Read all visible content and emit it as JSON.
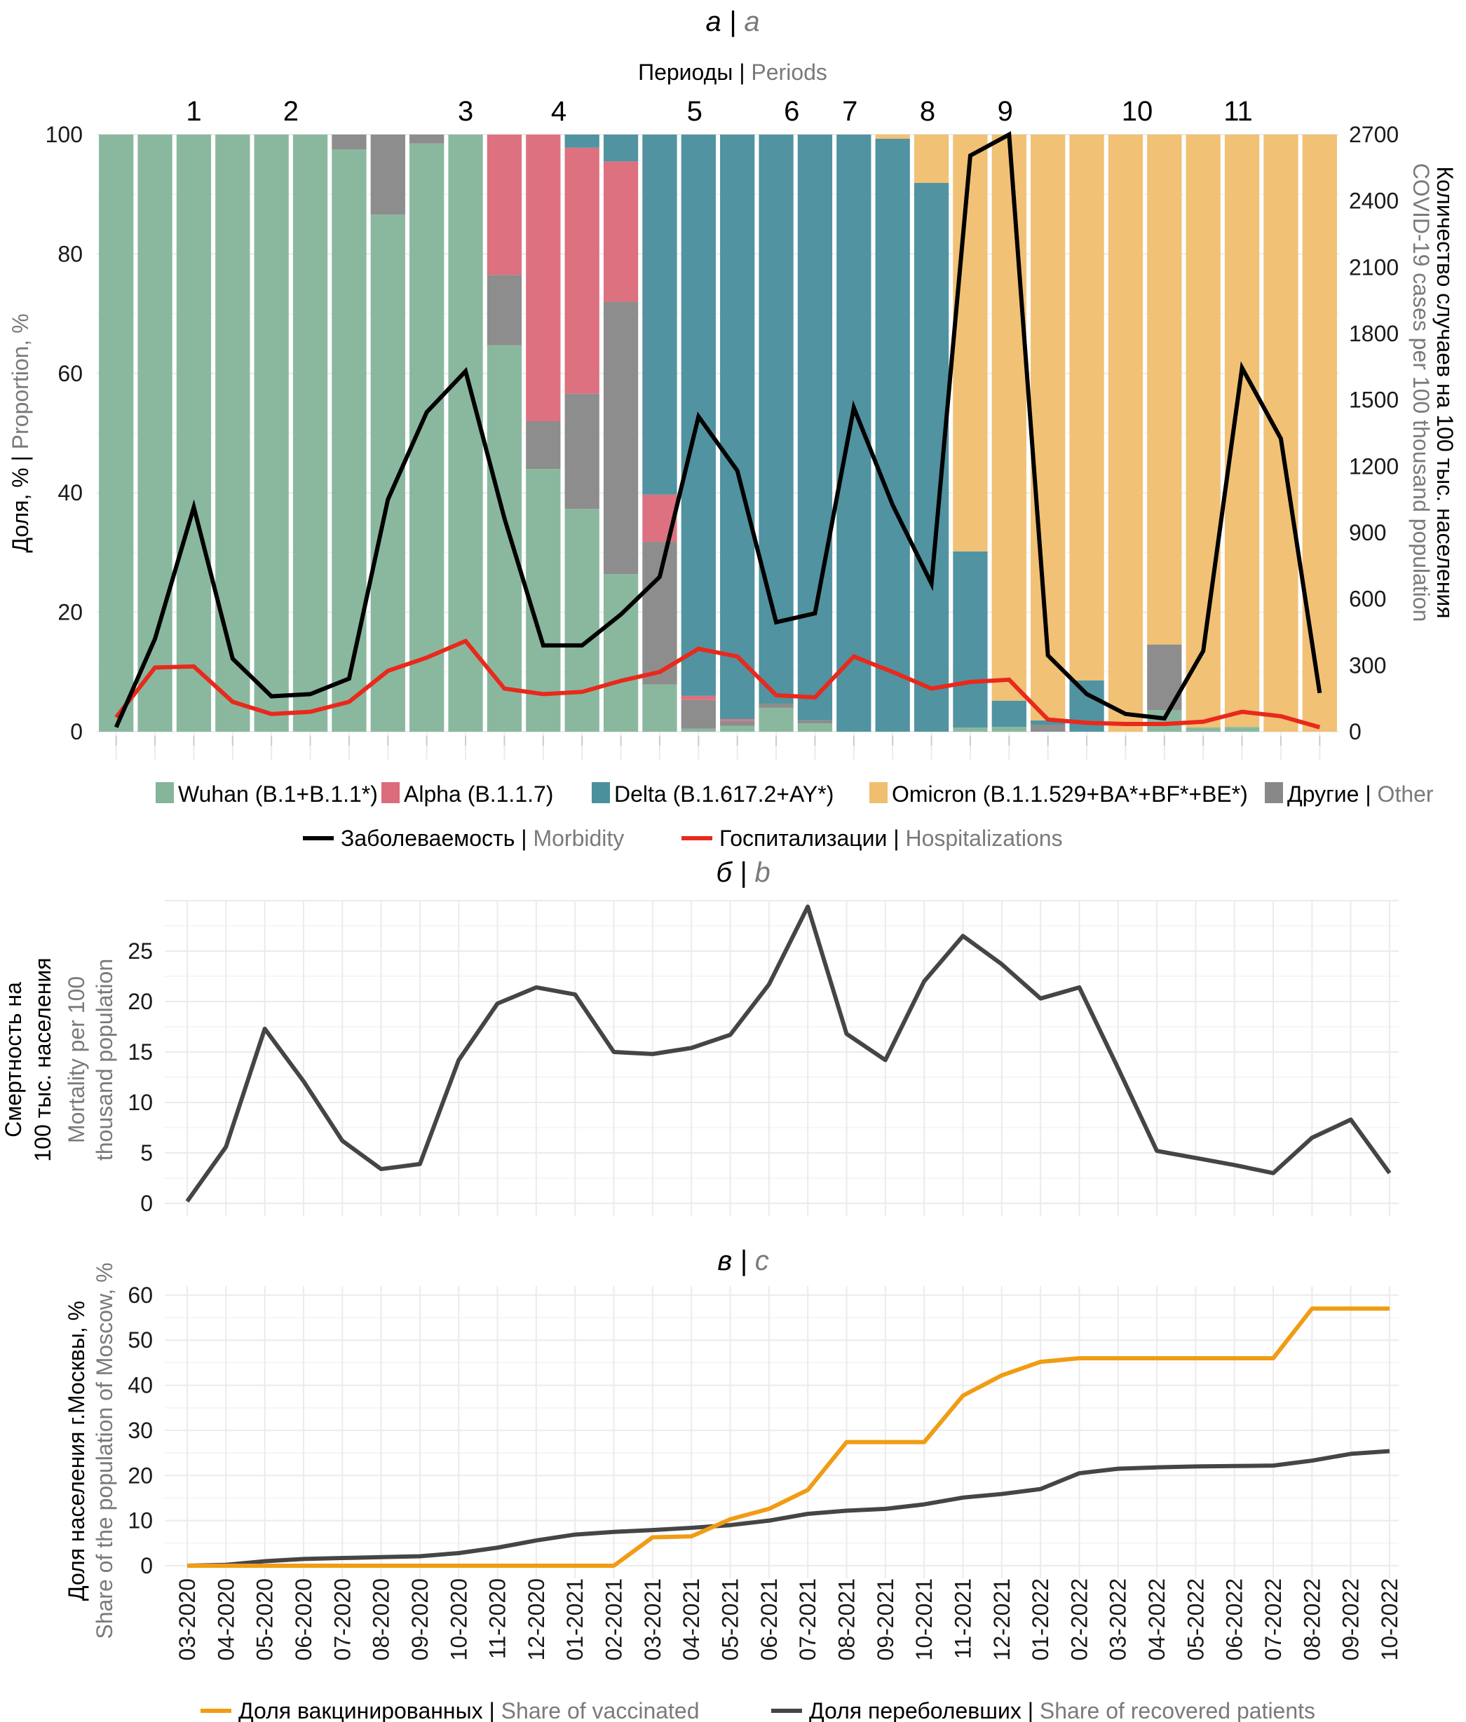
{
  "panels": {
    "a": {
      "letter_ru": "а",
      "letter_en": "a"
    },
    "b": {
      "letter_ru": "б",
      "letter_en": "b"
    },
    "c": {
      "letter_ru": "в",
      "letter_en": "c"
    }
  },
  "periods": {
    "title_ru": "Периоды",
    "title_en": "Periods",
    "labels": [
      "1",
      "2",
      "3",
      "4",
      "5",
      "6",
      "7",
      "8",
      "9",
      "10",
      "11"
    ]
  },
  "months": [
    "03-2020",
    "04-2020",
    "05-2020",
    "06-2020",
    "07-2020",
    "08-2020",
    "09-2020",
    "10-2020",
    "11-2020",
    "12-2020",
    "01-2021",
    "02-2021",
    "03-2021",
    "04-2021",
    "05-2021",
    "06-2021",
    "07-2021",
    "08-2021",
    "09-2021",
    "10-2021",
    "11-2021",
    "12-2021",
    "01-2022",
    "02-2022",
    "03-2022",
    "04-2022",
    "05-2022",
    "06-2022",
    "07-2022",
    "08-2022",
    "09-2022",
    "10-2022"
  ],
  "colors": {
    "wuhan": "#85b59b",
    "alpha": "#dc6b7b",
    "delta": "#4a8f9c",
    "omicron": "#f0be6f",
    "other": "#888888",
    "morbidity": "#000000",
    "hospitalizations": "#e8291c",
    "mortality": "#454545",
    "vaccinated": "#f09c14",
    "recovered": "#454545"
  },
  "chart_data": [
    {
      "type": "bar",
      "stacked": true,
      "ylabel_ru": "Доля, %",
      "ylabel_en": "Proportion, %",
      "ylim": [
        0,
        100
      ],
      "yticks": [
        0,
        20,
        40,
        60,
        80,
        100
      ],
      "y2label_ru": "Количество случаев на 100 тыс. населения",
      "y2label_en": "COVID-19 cases per 100 thousand population",
      "y2lim": [
        0,
        2700
      ],
      "y2ticks": [
        0,
        300,
        600,
        900,
        1200,
        1500,
        1800,
        2100,
        2400,
        2700
      ],
      "grid": true,
      "legend_position": "bottom",
      "series": [
        {
          "key": "wuhan",
          "name": "Wuhan (B.1+B.1.1*)",
          "values": [
            100,
            100,
            100,
            100,
            100,
            100,
            97.5,
            86.6,
            98.5,
            100,
            64.7,
            44,
            37.3,
            26.4,
            7.9,
            0.5,
            1,
            4,
            1.4,
            0,
            0,
            0,
            0.7,
            0.8,
            0,
            0,
            0,
            3.6,
            0.7,
            0.8,
            0,
            0
          ]
        },
        {
          "key": "other",
          "name_ru": "Другие",
          "name_en": "Other",
          "values": [
            0,
            0,
            0,
            0,
            0,
            0,
            2.5,
            13.4,
            1.5,
            0,
            11.8,
            8,
            19.3,
            45.6,
            23.9,
            4.8,
            0.8,
            0.7,
            0.5,
            0,
            0,
            0,
            0,
            0,
            1.1,
            0,
            0,
            11,
            0,
            0,
            0,
            0
          ]
        },
        {
          "key": "alpha",
          "name": "Alpha (B.1.1.7)",
          "values": [
            0,
            0,
            0,
            0,
            0,
            0,
            0,
            0,
            0,
            0,
            23.5,
            48,
            41.2,
            23.5,
            7.9,
            0.7,
            0.3,
            0,
            0,
            0,
            0,
            0,
            0,
            0,
            0,
            0,
            0,
            0,
            0,
            0,
            0,
            0
          ]
        },
        {
          "key": "delta",
          "name": "Delta (B.1.617.2+AY*)",
          "values": [
            0,
            0,
            0,
            0,
            0,
            0,
            0,
            0,
            0,
            0,
            0,
            0,
            2.2,
            4.5,
            60.3,
            94,
            97.9,
            95.3,
            98.1,
            100,
            99.3,
            91.9,
            29.5,
            4.4,
            0.8,
            8.6,
            0,
            0,
            0,
            0,
            0,
            0
          ]
        },
        {
          "key": "omicron",
          "name": "Omicron (B.1.1.529+BA*+BF*+BE*)",
          "values": [
            0,
            0,
            0,
            0,
            0,
            0,
            0,
            0,
            0,
            0,
            0,
            0,
            0,
            0,
            0,
            0,
            0,
            0,
            0,
            0,
            0.7,
            8.1,
            69.8,
            94.8,
            98.1,
            91.4,
            100,
            85.4,
            99.3,
            99.2,
            100,
            100
          ]
        }
      ],
      "lines": [
        {
          "key": "morbidity",
          "name_ru": "Заболеваемость",
          "name_en": "Morbidity",
          "axis": "right",
          "values": [
            20,
            420,
            1015,
            330,
            160,
            170,
            240,
            1050,
            1445,
            1630,
            965,
            390,
            390,
            530,
            700,
            1425,
            1180,
            495,
            535,
            1465,
            1025,
            670,
            2605,
            2700,
            345,
            170,
            80,
            60,
            365,
            1645,
            1325,
            175
          ]
        },
        {
          "key": "hospitalizations",
          "name_ru": "Госпитализации",
          "name_en": "Hospitalizations",
          "axis": "right",
          "values": [
            65,
            290,
            295,
            135,
            80,
            90,
            135,
            275,
            335,
            410,
            195,
            170,
            180,
            230,
            270,
            375,
            340,
            165,
            155,
            340,
            270,
            195,
            225,
            235,
            55,
            40,
            35,
            35,
            45,
            90,
            70,
            20
          ]
        }
      ]
    },
    {
      "type": "line",
      "ylabel_ru": [
        "Смертность на",
        "100 тыс. населения"
      ],
      "ylabel_en": [
        "Mortality per 100",
        "thousand population"
      ],
      "ylim": [
        0,
        30
      ],
      "yticks": [
        0,
        5,
        10,
        15,
        20,
        25
      ],
      "grid": true,
      "series": [
        {
          "key": "mortality",
          "values": [
            0.2,
            5.6,
            17.3,
            12.1,
            6.2,
            3.4,
            3.9,
            14.2,
            19.8,
            21.4,
            20.7,
            15.0,
            14.8,
            15.4,
            16.7,
            21.7,
            29.4,
            16.8,
            14.2,
            22.0,
            26.5,
            23.7,
            20.3,
            21.4,
            13.4,
            5.2,
            4.5,
            3.8,
            3.0,
            6.5,
            8.3,
            3.0
          ]
        }
      ]
    },
    {
      "type": "line",
      "ylabel_ru": "Доля населения г.Москвы, %",
      "ylabel_en": "Share of the population of Moscow, %",
      "ylim": [
        0,
        62
      ],
      "yticks": [
        0,
        10,
        20,
        30,
        40,
        50,
        60
      ],
      "grid": true,
      "legend_position": "bottom",
      "series": [
        {
          "key": "vaccinated",
          "name_ru": "Доля вакцинированных",
          "name_en": "Share of vaccinated",
          "values": [
            0,
            0,
            0,
            0,
            0,
            0,
            0,
            0,
            0,
            0,
            0,
            0,
            6.3,
            6.5,
            10.3,
            12.6,
            16.8,
            27.4,
            27.4,
            27.4,
            37.7,
            42.2,
            45.2,
            46,
            46,
            46,
            46,
            46,
            46,
            57,
            57,
            57
          ]
        },
        {
          "key": "recovered",
          "name_ru": "Доля переболевших",
          "name_en": "Share of recovered patients",
          "values": [
            0,
            0.2,
            1.0,
            1.5,
            1.7,
            1.9,
            2.1,
            2.8,
            4.0,
            5.6,
            6.9,
            7.5,
            7.9,
            8.4,
            9.0,
            10.0,
            11.5,
            12.2,
            12.6,
            13.6,
            15.1,
            15.9,
            17.0,
            20.5,
            21.5,
            21.8,
            22.0,
            22.1,
            22.2,
            23.3,
            24.8,
            25.4
          ]
        }
      ]
    }
  ]
}
